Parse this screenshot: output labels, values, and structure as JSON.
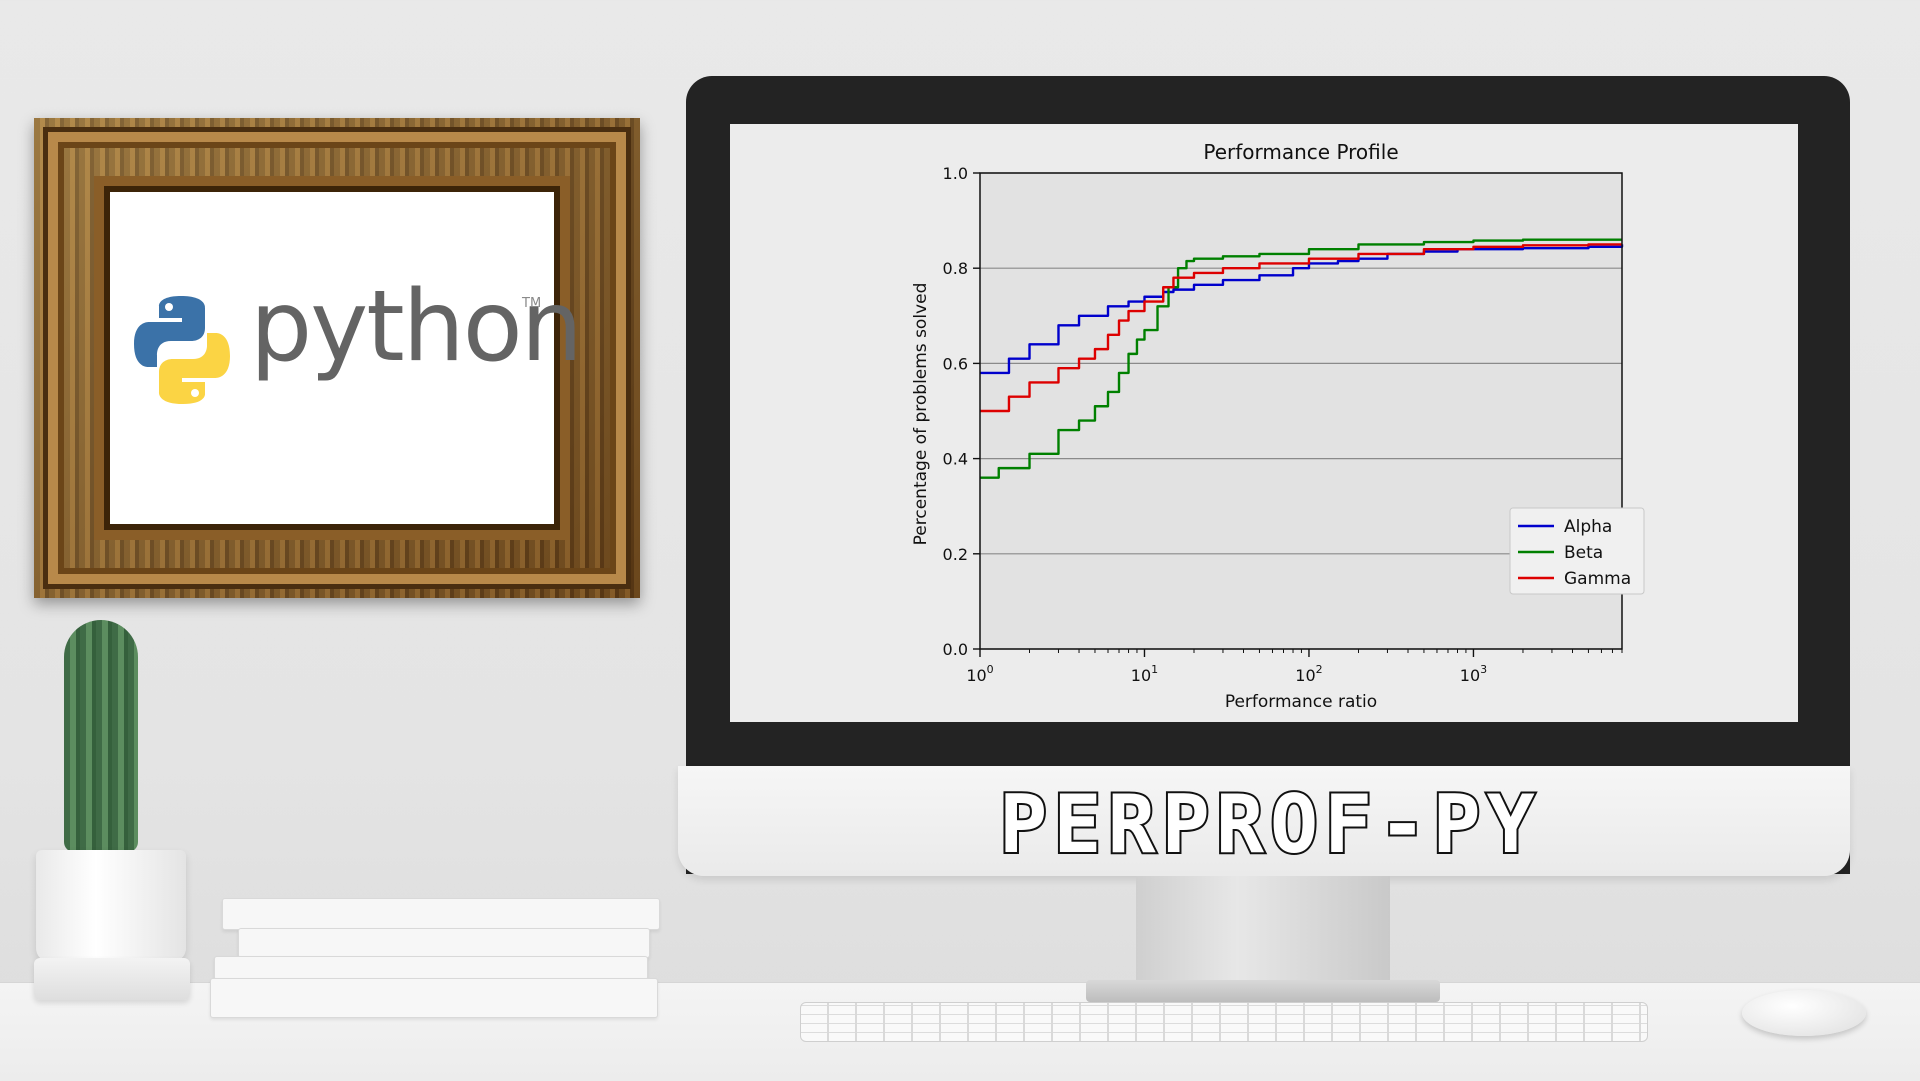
{
  "scene": {
    "python_logo": {
      "wordmark": "python",
      "trademark": "TM"
    },
    "monitor_brand": "PERPROF-PY"
  },
  "chart_data": {
    "type": "line",
    "title": "Performance Profile",
    "xlabel": "Performance ratio",
    "ylabel": "Percentage of problems solved",
    "xscale": "log",
    "xlim": [
      1,
      8000
    ],
    "ylim": [
      0.0,
      1.0
    ],
    "xticks": [
      {
        "value": 1,
        "base": "10",
        "exp": "0"
      },
      {
        "value": 10,
        "base": "10",
        "exp": "1"
      },
      {
        "value": 100,
        "base": "10",
        "exp": "2"
      },
      {
        "value": 1000,
        "base": "10",
        "exp": "3"
      }
    ],
    "yticks": [
      "0.0",
      "0.2",
      "0.4",
      "0.6",
      "0.8",
      "1.0"
    ],
    "ytick_values": [
      0.0,
      0.2,
      0.4,
      0.6,
      0.8,
      1.0
    ],
    "grid": "horizontal",
    "legend": "lower-right",
    "series": [
      {
        "name": "Alpha",
        "color": "#0000cc",
        "x": [
          1,
          1.5,
          2,
          3,
          4,
          6,
          8,
          10,
          13,
          15,
          20,
          30,
          50,
          80,
          100,
          150,
          200,
          300,
          500,
          800,
          1000,
          2000,
          5000,
          8000
        ],
        "y": [
          0.58,
          0.61,
          0.64,
          0.68,
          0.7,
          0.72,
          0.73,
          0.74,
          0.75,
          0.755,
          0.765,
          0.775,
          0.785,
          0.8,
          0.81,
          0.815,
          0.82,
          0.83,
          0.835,
          0.84,
          0.84,
          0.842,
          0.845,
          0.85
        ]
      },
      {
        "name": "Beta",
        "color": "#008000",
        "x": [
          1,
          1.3,
          2,
          3,
          4,
          5,
          6,
          7,
          8,
          9,
          10,
          12,
          14,
          16,
          18,
          20,
          30,
          50,
          100,
          200,
          500,
          1000,
          2000,
          5000,
          8000
        ],
        "y": [
          0.36,
          0.38,
          0.41,
          0.46,
          0.48,
          0.51,
          0.54,
          0.58,
          0.62,
          0.65,
          0.67,
          0.72,
          0.76,
          0.8,
          0.815,
          0.82,
          0.825,
          0.83,
          0.84,
          0.85,
          0.855,
          0.858,
          0.86,
          0.86,
          0.86
        ]
      },
      {
        "name": "Gamma",
        "color": "#dd0000",
        "x": [
          1,
          1.5,
          2,
          3,
          4,
          5,
          6,
          7,
          8,
          10,
          13,
          15,
          20,
          30,
          50,
          100,
          200,
          500,
          1000,
          2000,
          5000,
          8000
        ],
        "y": [
          0.5,
          0.53,
          0.56,
          0.59,
          0.61,
          0.63,
          0.66,
          0.69,
          0.71,
          0.73,
          0.76,
          0.78,
          0.79,
          0.8,
          0.81,
          0.82,
          0.83,
          0.84,
          0.845,
          0.848,
          0.85,
          0.85
        ]
      }
    ]
  }
}
